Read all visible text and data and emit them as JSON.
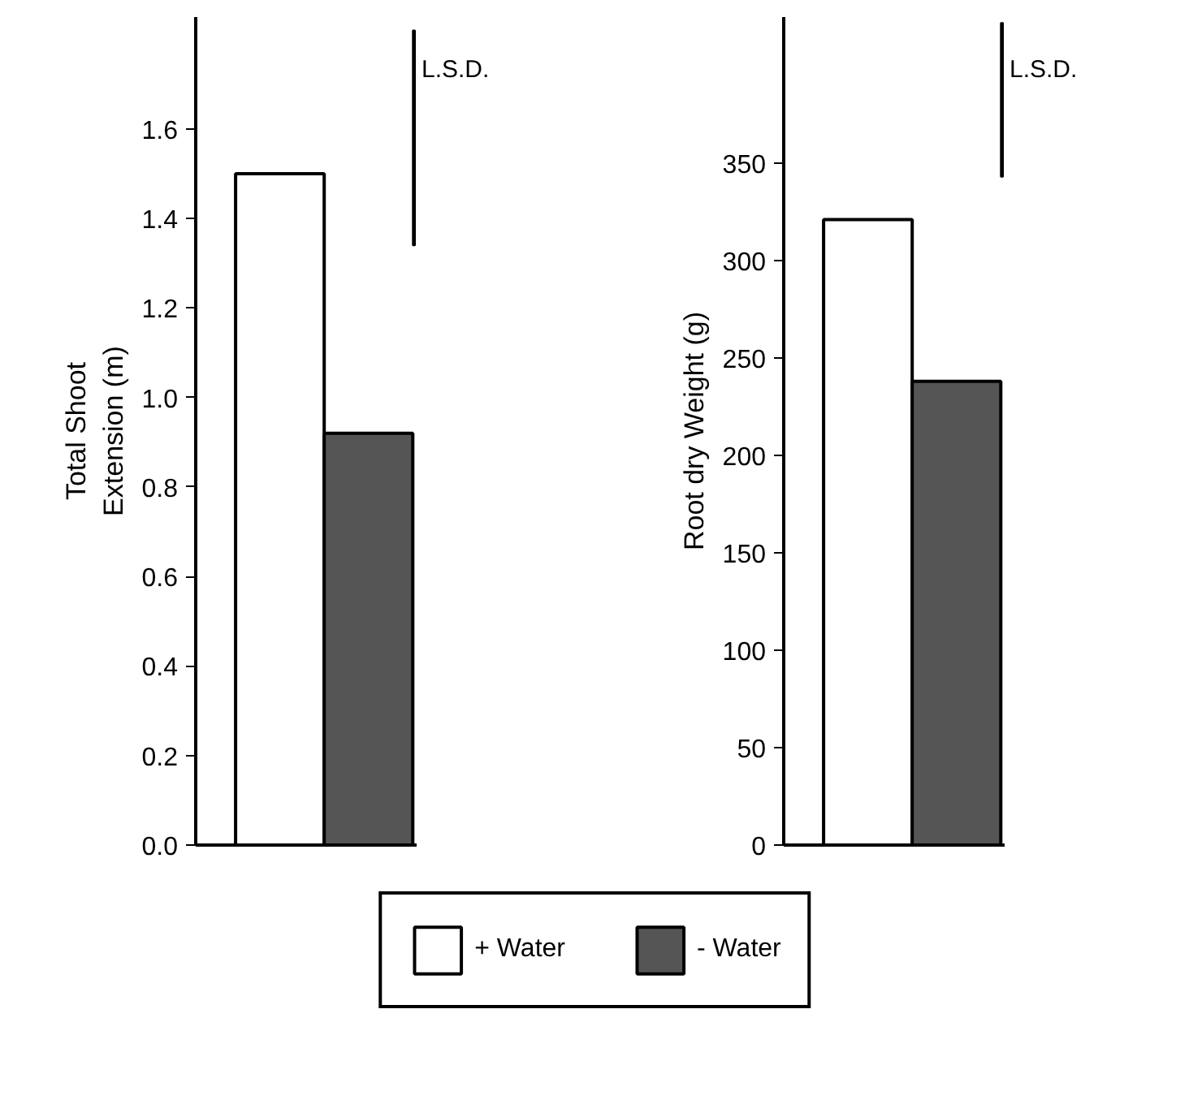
{
  "chart_data": [
    {
      "type": "bar",
      "categories": [
        null
      ],
      "ylabel": "Total Shoot\nExtension (m)",
      "ylim": [
        0,
        1.85
      ],
      "yticks": [
        {
          "value": 0,
          "label": "0.0"
        },
        0.2,
        0.4,
        0.6,
        0.8,
        {
          "value": 1,
          "label": "1.0"
        },
        1.2,
        1.4,
        1.6
      ],
      "series": [
        {
          "color": "#ffffff",
          "values": [
            1.5
          ]
        },
        {
          "color": "#555555",
          "values": [
            0.92
          ]
        },
        {
          "color": "#000000",
          "values": [
            0.48
          ],
          "base": [
            1.34
          ]
        }
      ],
      "annotations": [
        "L.S.D."
      ],
      "grid": false,
      "tick_labels": "y"
    },
    {
      "type": "bar",
      "categories": [
        null
      ],
      "ylabel": "Root dry Weight (g)",
      "ylim": [
        0,
        425
      ],
      "yticks": [
        0,
        50,
        100,
        150,
        200,
        250,
        300,
        350
      ],
      "series": [
        {
          "name": "+ Water",
          "color": "#ffffff",
          "values": [
            321
          ]
        },
        {
          "name": "- Water",
          "color": "#555555",
          "values": [
            238
          ]
        },
        {
          "color": "#000000",
          "values": [
            79
          ],
          "base": [
            343
          ]
        }
      ],
      "annotations": [
        "L.S.D."
      ],
      "grid": false,
      "tick_labels": "y",
      "legend": "bottom"
    }
  ]
}
